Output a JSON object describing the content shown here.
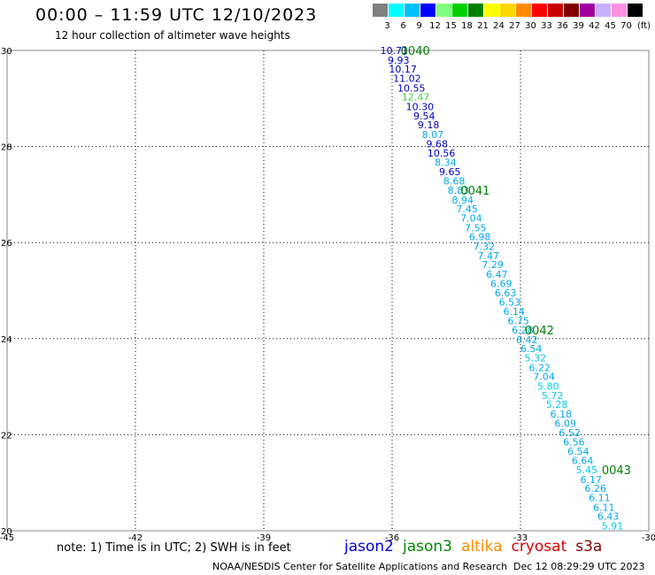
{
  "header": {
    "title": "00:00 – 11:59 UTC 12/10/2023",
    "subtitle": "12 hour collection of altimeter wave heights"
  },
  "legend": {
    "unit": "(ft)",
    "bins": [
      {
        "label": "3",
        "color": "#808080"
      },
      {
        "label": "6",
        "color": "#00ffff"
      },
      {
        "label": "9",
        "color": "#00bfff"
      },
      {
        "label": "12",
        "color": "#0000ff"
      },
      {
        "label": "15",
        "color": "#80ff80"
      },
      {
        "label": "18",
        "color": "#00d000"
      },
      {
        "label": "21",
        "color": "#008000"
      },
      {
        "label": "24",
        "color": "#ffff00"
      },
      {
        "label": "27",
        "color": "#ffd700"
      },
      {
        "label": "30",
        "color": "#ff8c00"
      },
      {
        "label": "33",
        "color": "#ff0000"
      },
      {
        "label": "36",
        "color": "#c80000"
      },
      {
        "label": "39",
        "color": "#800000"
      },
      {
        "label": "42",
        "color": "#a000a0"
      },
      {
        "label": "45",
        "color": "#c8b0ff"
      },
      {
        "label": "70",
        "color": "#ff90e0"
      },
      {
        "label": "",
        "color": "#000000"
      }
    ]
  },
  "chart_data": {
    "type": "scatter",
    "xlim": [
      -45,
      -30
    ],
    "ylim": [
      20,
      30
    ],
    "x_ticks": [
      "-45",
      "-42",
      "-39",
      "-36",
      "-33",
      "-30"
    ],
    "y_ticks": [
      "30",
      "28",
      "26",
      "24",
      "22",
      "20"
    ],
    "grid": true,
    "points": [
      {
        "lon": -35.95,
        "lat": 30.0,
        "v": "10.71",
        "color": "#0000c8"
      },
      {
        "lon": -35.85,
        "lat": 29.8,
        "v": "9.93",
        "color": "#0000c8"
      },
      {
        "lon": -35.75,
        "lat": 29.61,
        "v": "10.17",
        "color": "#0000c8"
      },
      {
        "lon": -35.65,
        "lat": 29.42,
        "v": "11.02",
        "color": "#0000c8"
      },
      {
        "lon": -35.55,
        "lat": 29.22,
        "v": "10.55",
        "color": "#0000c8"
      },
      {
        "lon": -35.45,
        "lat": 29.03,
        "v": "12.47",
        "color": "#40d040"
      },
      {
        "lon": -35.35,
        "lat": 28.83,
        "v": "10.30",
        "color": "#0000c8"
      },
      {
        "lon": -35.25,
        "lat": 28.64,
        "v": "9.54",
        "color": "#0000c8"
      },
      {
        "lon": -35.15,
        "lat": 28.45,
        "v": "9.18",
        "color": "#0000c8"
      },
      {
        "lon": -35.05,
        "lat": 28.25,
        "v": "8.07",
        "color": "#00aaee"
      },
      {
        "lon": -34.95,
        "lat": 28.06,
        "v": "9.68",
        "color": "#0000c8"
      },
      {
        "lon": -34.85,
        "lat": 27.86,
        "v": "10.56",
        "color": "#0000c8"
      },
      {
        "lon": -34.75,
        "lat": 27.67,
        "v": "8.34",
        "color": "#00aaee"
      },
      {
        "lon": -34.65,
        "lat": 27.48,
        "v": "9.65",
        "color": "#0000c8"
      },
      {
        "lon": -34.55,
        "lat": 27.28,
        "v": "8.68",
        "color": "#00aaee"
      },
      {
        "lon": -34.45,
        "lat": 27.09,
        "v": "8.83",
        "color": "#00aaee"
      },
      {
        "lon": -34.35,
        "lat": 26.89,
        "v": "8.94",
        "color": "#00aaee"
      },
      {
        "lon": -34.25,
        "lat": 26.7,
        "v": "7.45",
        "color": "#00aaee"
      },
      {
        "lon": -34.15,
        "lat": 26.51,
        "v": "7.04",
        "color": "#00aaee"
      },
      {
        "lon": -34.05,
        "lat": 26.31,
        "v": "7.55",
        "color": "#00aaee"
      },
      {
        "lon": -33.95,
        "lat": 26.12,
        "v": "6.98",
        "color": "#00aaee"
      },
      {
        "lon": -33.85,
        "lat": 25.92,
        "v": "7.32",
        "color": "#00aaee"
      },
      {
        "lon": -33.75,
        "lat": 25.73,
        "v": "7.47",
        "color": "#00aaee"
      },
      {
        "lon": -33.65,
        "lat": 25.54,
        "v": "7.29",
        "color": "#00aaee"
      },
      {
        "lon": -33.55,
        "lat": 25.34,
        "v": "6.47",
        "color": "#00aaee"
      },
      {
        "lon": -33.45,
        "lat": 25.15,
        "v": "6.69",
        "color": "#00aaee"
      },
      {
        "lon": -33.35,
        "lat": 24.95,
        "v": "6.63",
        "color": "#00aaee"
      },
      {
        "lon": -33.25,
        "lat": 24.76,
        "v": "6.53",
        "color": "#00aaee"
      },
      {
        "lon": -33.15,
        "lat": 24.57,
        "v": "6.14",
        "color": "#00aaee"
      },
      {
        "lon": -33.05,
        "lat": 24.37,
        "v": "6.75",
        "color": "#00aaee"
      },
      {
        "lon": -32.95,
        "lat": 24.18,
        "v": "6.28",
        "color": "#00aaee"
      },
      {
        "lon": -32.85,
        "lat": 23.98,
        "v": "6.42",
        "color": "#00aaee"
      },
      {
        "lon": -32.75,
        "lat": 23.79,
        "v": "6.54",
        "color": "#00aaee"
      },
      {
        "lon": -32.65,
        "lat": 23.6,
        "v": "5.32",
        "color": "#00ccee"
      },
      {
        "lon": -32.55,
        "lat": 23.4,
        "v": "6.22",
        "color": "#00aaee"
      },
      {
        "lon": -32.45,
        "lat": 23.21,
        "v": "7.04",
        "color": "#00aaee"
      },
      {
        "lon": -32.35,
        "lat": 23.01,
        "v": "5.80",
        "color": "#00ccee"
      },
      {
        "lon": -32.25,
        "lat": 22.82,
        "v": "5.72",
        "color": "#00ccee"
      },
      {
        "lon": -32.15,
        "lat": 22.63,
        "v": "5.28",
        "color": "#00ccee"
      },
      {
        "lon": -32.05,
        "lat": 22.43,
        "v": "6.18",
        "color": "#00aaee"
      },
      {
        "lon": -31.95,
        "lat": 22.24,
        "v": "6.09",
        "color": "#00aaee"
      },
      {
        "lon": -31.85,
        "lat": 22.04,
        "v": "6.52",
        "color": "#00aaee"
      },
      {
        "lon": -31.75,
        "lat": 21.85,
        "v": "6.56",
        "color": "#00aaee"
      },
      {
        "lon": -31.65,
        "lat": 21.66,
        "v": "6.54",
        "color": "#00aaee"
      },
      {
        "lon": -31.55,
        "lat": 21.46,
        "v": "6.64",
        "color": "#00aaee"
      },
      {
        "lon": -31.45,
        "lat": 21.27,
        "v": "5.45",
        "color": "#00ccee"
      },
      {
        "lon": -31.35,
        "lat": 21.07,
        "v": "6.17",
        "color": "#00aaee"
      },
      {
        "lon": -31.25,
        "lat": 20.88,
        "v": "6.26",
        "color": "#00aaee"
      },
      {
        "lon": -31.15,
        "lat": 20.69,
        "v": "6.11",
        "color": "#00aaee"
      },
      {
        "lon": -31.05,
        "lat": 20.49,
        "v": "6.11",
        "color": "#00aaee"
      },
      {
        "lon": -30.95,
        "lat": 20.3,
        "v": "6.43",
        "color": "#00aaee"
      },
      {
        "lon": -30.85,
        "lat": 20.1,
        "v": "5.91",
        "color": "#00ccee"
      }
    ],
    "time_markers": [
      {
        "lon": -35.8,
        "lat": 30.0,
        "text": "0040",
        "color": "#008000"
      },
      {
        "lon": -34.4,
        "lat": 27.09,
        "text": "0041",
        "color": "#008000"
      },
      {
        "lon": -32.9,
        "lat": 24.18,
        "text": "0042",
        "color": "#008000"
      },
      {
        "lon": -31.1,
        "lat": 21.27,
        "text": "0043",
        "color": "#008000"
      }
    ]
  },
  "footer": {
    "note": "note: 1) Time is in UTC; 2) SWH is in feet",
    "satellites": [
      {
        "name": "jason2",
        "color": "#0000dd"
      },
      {
        "name": "jason3",
        "color": "#008800"
      },
      {
        "name": "altika",
        "color": "#ff8c00"
      },
      {
        "name": "cryosat",
        "color": "#dd0000"
      },
      {
        "name": "s3a",
        "color": "#800000"
      }
    ],
    "credit": "NOAA/NESDIS Center for Satellite Applications and Research",
    "timestamp": "Dec 12 08:29:29 UTC 2023"
  }
}
